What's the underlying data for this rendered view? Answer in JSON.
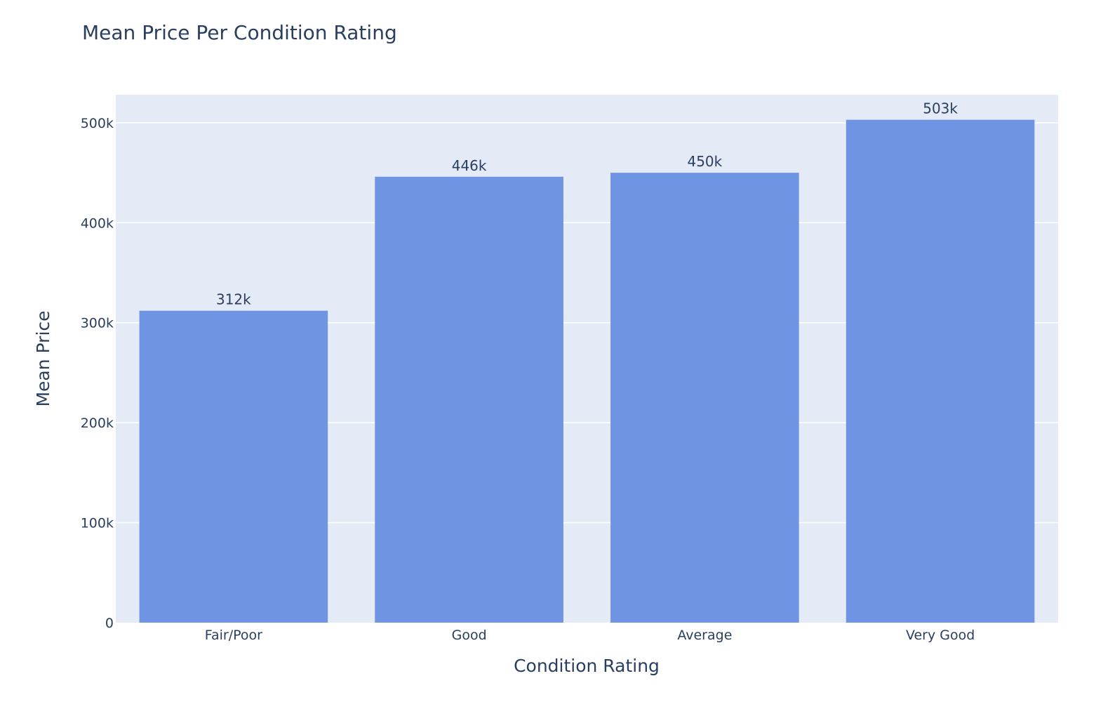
{
  "chart_data": {
    "type": "bar",
    "title": "Mean Price Per Condition Rating",
    "xlabel": "Condition Rating",
    "ylabel": "Mean Price",
    "categories": [
      "Fair/Poor",
      "Good",
      "Average",
      "Very Good"
    ],
    "values": [
      312000,
      446000,
      450000,
      503000
    ],
    "data_labels": [
      "312k",
      "446k",
      "450k",
      "503k"
    ],
    "ylim": [
      0,
      528000
    ],
    "yticks": [
      0,
      100000,
      200000,
      300000,
      400000,
      500000
    ],
    "ytick_labels": [
      "0",
      "100k",
      "200k",
      "300k",
      "400k",
      "500k"
    ],
    "grid": true,
    "legend": "none",
    "colors": {
      "bar": "#6f94e3",
      "plot_background": "#e5ebf6",
      "grid": "#ffffff",
      "text": "#2a3f5f"
    }
  }
}
